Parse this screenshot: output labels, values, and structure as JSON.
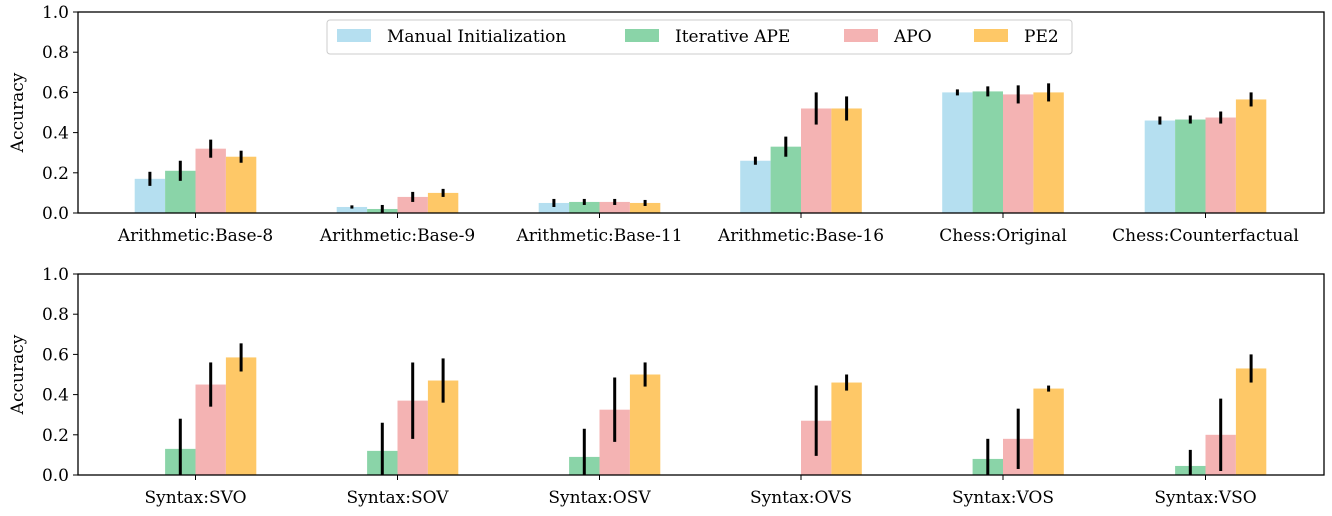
{
  "chart_data": [
    {
      "type": "bar",
      "ylabel": "Accuracy",
      "ylim": [
        0,
        1.0
      ],
      "yticks": [
        "0.0",
        "0.2",
        "0.4",
        "0.6",
        "0.8",
        "1.0"
      ],
      "grid": false,
      "legend_position": "top-center",
      "categories": [
        "Arithmetic:Base-8",
        "Arithmetic:Base-9",
        "Arithmetic:Base-11",
        "Arithmetic:Base-16",
        "Chess:Original",
        "Chess:Counterfactual"
      ],
      "series": [
        {
          "name": "Manual Initialization",
          "color": "#b5dff0",
          "values": [
            0.17,
            0.03,
            0.05,
            0.26,
            0.6,
            0.46
          ],
          "errors": [
            0.035,
            0.008,
            0.02,
            0.02,
            0.015,
            0.02
          ]
        },
        {
          "name": "Iterative APE",
          "color": "#8ad4a8",
          "values": [
            0.21,
            0.02,
            0.055,
            0.33,
            0.605,
            0.465
          ],
          "errors": [
            0.05,
            0.02,
            0.015,
            0.05,
            0.025,
            0.02
          ]
        },
        {
          "name": "APO",
          "color": "#f4b3b3",
          "values": [
            0.32,
            0.08,
            0.055,
            0.52,
            0.59,
            0.475
          ],
          "errors": [
            0.045,
            0.025,
            0.015,
            0.08,
            0.045,
            0.03
          ]
        },
        {
          "name": "PE2",
          "color": "#fec867",
          "values": [
            0.28,
            0.1,
            0.05,
            0.52,
            0.6,
            0.565
          ],
          "errors": [
            0.03,
            0.02,
            0.015,
            0.06,
            0.045,
            0.035
          ]
        }
      ]
    },
    {
      "type": "bar",
      "ylabel": "Accuracy",
      "ylim": [
        0,
        1.0
      ],
      "yticks": [
        "0.0",
        "0.2",
        "0.4",
        "0.6",
        "0.8",
        "1.0"
      ],
      "grid": false,
      "categories": [
        "Syntax:SVO",
        "Syntax:SOV",
        "Syntax:OSV",
        "Syntax:OVS",
        "Syntax:VOS",
        "Syntax:VSO"
      ],
      "series": [
        {
          "name": "Manual Initialization",
          "color": "#b5dff0",
          "values": [
            0.0,
            0.0,
            0.0,
            0.0,
            0.0,
            0.0
          ],
          "errors": [
            0,
            0,
            0,
            0,
            0,
            0
          ]
        },
        {
          "name": "Iterative APE",
          "color": "#8ad4a8",
          "values": [
            0.13,
            0.12,
            0.09,
            0.0,
            0.08,
            0.045
          ],
          "errors": [
            0.15,
            0.14,
            0.14,
            0.0,
            0.1,
            0.08
          ]
        },
        {
          "name": "APO",
          "color": "#f4b3b3",
          "values": [
            0.45,
            0.37,
            0.325,
            0.27,
            0.18,
            0.2
          ],
          "errors": [
            0.11,
            0.19,
            0.16,
            0.175,
            0.15,
            0.18
          ]
        },
        {
          "name": "PE2",
          "color": "#fec867",
          "values": [
            0.585,
            0.47,
            0.5,
            0.46,
            0.43,
            0.53
          ],
          "errors": [
            0.07,
            0.11,
            0.06,
            0.04,
            0.015,
            0.07
          ]
        }
      ]
    }
  ]
}
